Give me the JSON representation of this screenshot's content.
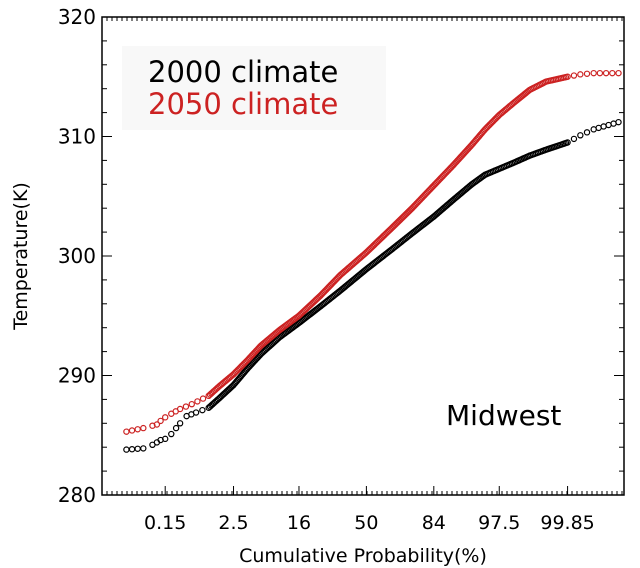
{
  "chart_data": {
    "type": "scatter",
    "xlabel": "Cumulative Probability(%)",
    "ylabel": "Temperature(K)",
    "annotation": "Midwest",
    "x_scale": "normal-probability",
    "ylim": [
      280,
      320
    ],
    "y_ticks": [
      280,
      290,
      300,
      310,
      320
    ],
    "y_tick_labels": [
      "280",
      "290",
      "300",
      "310",
      "320"
    ],
    "x_ticks": [
      0.15,
      2.5,
      16,
      50,
      84,
      97.5,
      99.85
    ],
    "x_tick_labels": [
      "0.15",
      "2.5",
      "16",
      "50",
      "84",
      "97.5",
      "99.85"
    ],
    "legend_position": "top-left",
    "grid": false,
    "series": [
      {
        "name": "2000 climate",
        "color": "#000000",
        "points": [
          [
            0.02,
            283.8
          ],
          [
            0.05,
            283.9
          ],
          [
            0.08,
            284.2
          ],
          [
            0.1,
            284.4
          ],
          [
            0.12,
            284.6
          ],
          [
            0.15,
            284.7
          ],
          [
            0.2,
            285.1
          ],
          [
            0.25,
            285.6
          ],
          [
            0.3,
            286.0
          ],
          [
            0.4,
            286.6
          ],
          [
            0.6,
            286.9
          ],
          [
            1.0,
            287.3
          ],
          [
            1.5,
            288.1
          ],
          [
            2.5,
            289.2
          ],
          [
            4,
            290.6
          ],
          [
            6,
            291.8
          ],
          [
            10,
            293.2
          ],
          [
            16,
            294.4
          ],
          [
            25,
            295.8
          ],
          [
            35,
            297.1
          ],
          [
            50,
            298.9
          ],
          [
            65,
            300.6
          ],
          [
            75,
            301.9
          ],
          [
            84,
            303.3
          ],
          [
            90,
            304.7
          ],
          [
            94,
            306.0
          ],
          [
            96,
            306.8
          ],
          [
            97.5,
            307.3
          ],
          [
            98.5,
            307.8
          ],
          [
            99.2,
            308.4
          ],
          [
            99.6,
            308.9
          ],
          [
            99.85,
            309.5
          ],
          [
            99.92,
            310.1
          ],
          [
            99.96,
            310.6
          ],
          [
            99.99,
            311.2
          ]
        ]
      },
      {
        "name": "2050 climate",
        "color": "#cc2222",
        "points": [
          [
            0.02,
            285.3
          ],
          [
            0.05,
            285.6
          ],
          [
            0.08,
            285.8
          ],
          [
            0.1,
            285.9
          ],
          [
            0.12,
            286.2
          ],
          [
            0.15,
            286.5
          ],
          [
            0.2,
            286.8
          ],
          [
            0.3,
            287.2
          ],
          [
            0.5,
            287.6
          ],
          [
            1.0,
            288.3
          ],
          [
            1.5,
            289.1
          ],
          [
            2.5,
            290.1
          ],
          [
            4,
            291.3
          ],
          [
            6,
            292.5
          ],
          [
            10,
            293.8
          ],
          [
            16,
            295.0
          ],
          [
            25,
            296.7
          ],
          [
            35,
            298.4
          ],
          [
            50,
            300.3
          ],
          [
            65,
            302.4
          ],
          [
            75,
            304.0
          ],
          [
            84,
            305.9
          ],
          [
            90,
            307.6
          ],
          [
            94,
            309.3
          ],
          [
            96,
            310.6
          ],
          [
            97.5,
            311.8
          ],
          [
            98.5,
            312.8
          ],
          [
            99.2,
            313.9
          ],
          [
            99.6,
            314.6
          ],
          [
            99.85,
            315.0
          ],
          [
            99.92,
            315.2
          ],
          [
            99.96,
            315.3
          ],
          [
            99.99,
            315.3
          ]
        ]
      }
    ]
  }
}
